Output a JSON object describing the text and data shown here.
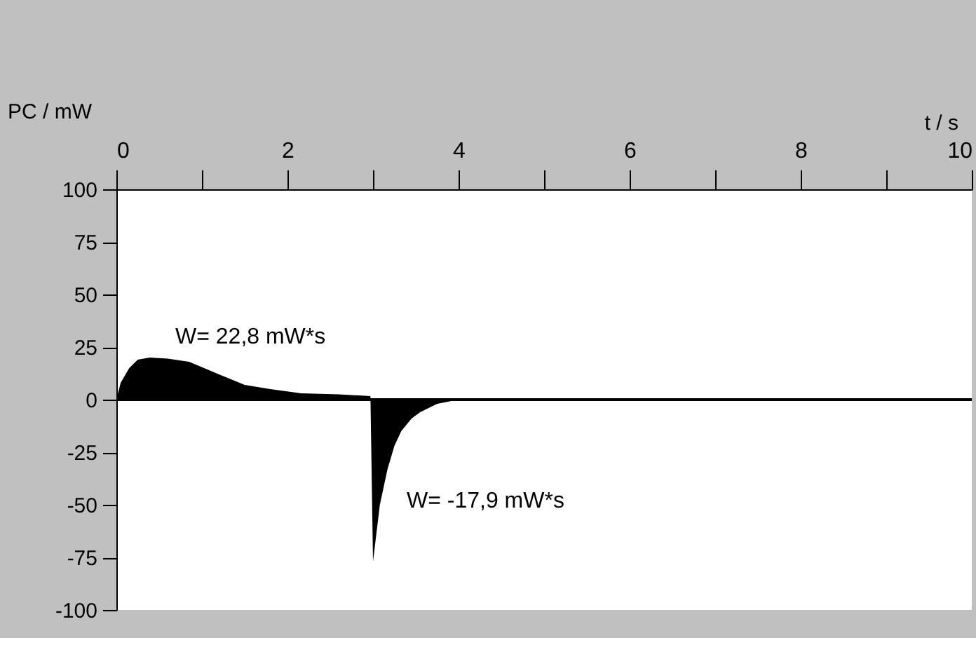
{
  "chart_data": {
    "type": "area",
    "xlabel": "t / s",
    "ylabel": "PC / mW",
    "series": [
      {
        "color": "#000000",
        "x": [
          0,
          0.05,
          0.15,
          0.25,
          0.39,
          0.6,
          0.85,
          1.2,
          1.5,
          1.8,
          2.16,
          2.6,
          2.97,
          3.0,
          3.08,
          3.17,
          3.25,
          3.33,
          3.45,
          3.55,
          3.75,
          4.0
        ],
        "values": [
          0,
          8,
          15,
          19,
          20,
          19.5,
          18,
          12,
          7,
          5,
          3,
          2.5,
          1.7,
          -77,
          -50,
          -33,
          -22,
          -15,
          -9,
          -6,
          -2,
          0
        ]
      }
    ],
    "xlim": [
      0,
      10
    ],
    "xticks": [
      0,
      {
        "value": 1,
        "label": null
      },
      2,
      {
        "value": 3,
        "label": null
      },
      4,
      {
        "value": 5,
        "label": null
      },
      6,
      {
        "value": 7,
        "label": null
      },
      8,
      {
        "value": 9,
        "label": null
      },
      10
    ],
    "ylim": [
      -100,
      100
    ],
    "yticks": [
      100,
      75,
      50,
      25,
      0,
      -25,
      -50,
      -75,
      -100
    ],
    "ref_lines": [
      {
        "axis": "y",
        "value": 0,
        "color": "#000000"
      }
    ],
    "annotations": [
      "W= 22,8 mW*s",
      "W= -17,9 mW*s"
    ],
    "grid": false
  }
}
